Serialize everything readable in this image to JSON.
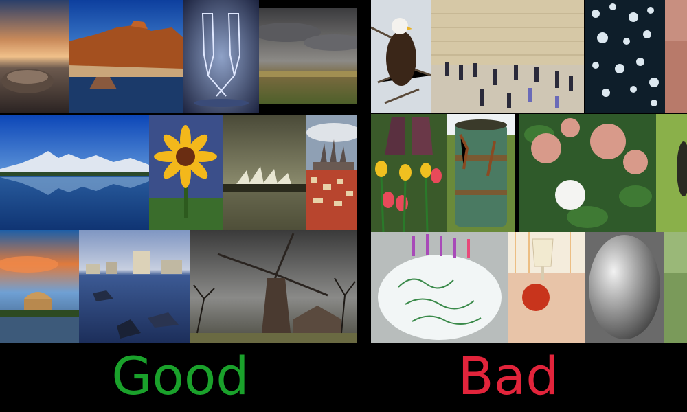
{
  "labels": {
    "good": "Good",
    "bad": "Bad"
  },
  "colors": {
    "good_label": "#1aa12b",
    "bad_label": "#e2243b",
    "background": "#000000"
  },
  "good_photos": [
    "sunset-beach",
    "red-rock-formation",
    "wine-glasses",
    "cloudy-field",
    "mountain-lake",
    "sunflower",
    "opera-house",
    "castle-city",
    "palace-of-fine-arts",
    "city-skyline-rocks",
    "windmill"
  ],
  "bad_photos": [
    "bald-eagle",
    "wailing-wall",
    "tree-silhouette",
    "red-strip",
    "tulips-boots",
    "rusty-barrel",
    "pink-flowers",
    "green-leaves",
    "birthday-cake",
    "apple-and-glass",
    "egg",
    "green-partial"
  ]
}
